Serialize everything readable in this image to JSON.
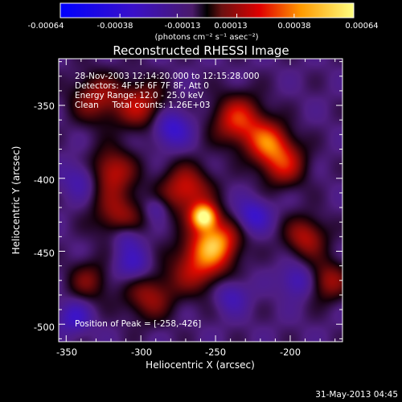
{
  "chart_data": {
    "type": "heatmap",
    "title": "Reconstructed RHESSI Image",
    "xlabel": "Heliocentric X (arcsec)",
    "ylabel": "Heliocentric Y (arcsec)",
    "xlim": [
      -355,
      -165
    ],
    "ylim": [
      -512,
      -318
    ],
    "x_ticks": [
      -350,
      -300,
      -250,
      -200
    ],
    "y_ticks": [
      -350,
      -400,
      -450,
      -500
    ],
    "colorbar": {
      "ticks": [
        "-0.00064",
        "-0.00038",
        "-0.00013",
        "0.00013",
        "0.00038",
        "0.00064"
      ],
      "range": [
        -0.00064,
        0.00064
      ],
      "unit_label": "(photons cm⁻² s⁻¹ asec⁻²)"
    },
    "annotations": [
      "28-Nov-2003 12:14:20.000 to 12:15:28.000",
      "Detectors: 4F 5F 6F 7F 8F, Att 0",
      "Energy Range: 12.0 - 25.0 keV",
      "Clean     Total counts: 1.26E+03"
    ],
    "peak_label": "Position of Peak = [-258,-426]",
    "peak": {
      "x": -258,
      "y": -426,
      "value": 0.00064
    },
    "sources": [
      {
        "x": -258,
        "y": -426,
        "sigma": 6,
        "amp": 1.0
      },
      {
        "x": -250,
        "y": -443,
        "sigma": 11,
        "amp": 0.82
      },
      {
        "x": -270,
        "y": -408,
        "sigma": 12,
        "amp": 0.6
      },
      {
        "x": -262,
        "y": -460,
        "sigma": 13,
        "amp": 0.55
      },
      {
        "x": -235,
        "y": -360,
        "sigma": 12,
        "amp": 0.65
      },
      {
        "x": -215,
        "y": -375,
        "sigma": 10,
        "amp": 0.62
      },
      {
        "x": -205,
        "y": -390,
        "sigma": 11,
        "amp": 0.55
      },
      {
        "x": -300,
        "y": -350,
        "sigma": 12,
        "amp": 0.5
      },
      {
        "x": -320,
        "y": -395,
        "sigma": 11,
        "amp": 0.55
      },
      {
        "x": -315,
        "y": -425,
        "sigma": 12,
        "amp": 0.45
      },
      {
        "x": -330,
        "y": -345,
        "sigma": 12,
        "amp": 0.45
      },
      {
        "x": -295,
        "y": -480,
        "sigma": 12,
        "amp": 0.45
      },
      {
        "x": -190,
        "y": -440,
        "sigma": 10,
        "amp": 0.5
      },
      {
        "x": -175,
        "y": -470,
        "sigma": 10,
        "amp": 0.45
      },
      {
        "x": -335,
        "y": -470,
        "sigma": 10,
        "amp": 0.35
      },
      {
        "x": -280,
        "y": -365,
        "sigma": 9,
        "amp": -0.45
      },
      {
        "x": -305,
        "y": -460,
        "sigma": 9,
        "amp": -0.35
      },
      {
        "x": -225,
        "y": -425,
        "sigma": 8,
        "amp": -0.4
      },
      {
        "x": -195,
        "y": -470,
        "sigma": 8,
        "amp": -0.35
      },
      {
        "x": -340,
        "y": -400,
        "sigma": 9,
        "amp": -0.3
      },
      {
        "x": -345,
        "y": -495,
        "sigma": 8,
        "amp": -0.35
      },
      {
        "x": -310,
        "y": -440,
        "sigma": 7,
        "amp": -0.3
      },
      {
        "x": -240,
        "y": -480,
        "sigma": 8,
        "amp": -0.3
      },
      {
        "x": -290,
        "y": -420,
        "sigma": 6,
        "amp": -0.25
      }
    ]
  },
  "footer": {
    "date": "31-May-2013 04:45"
  }
}
